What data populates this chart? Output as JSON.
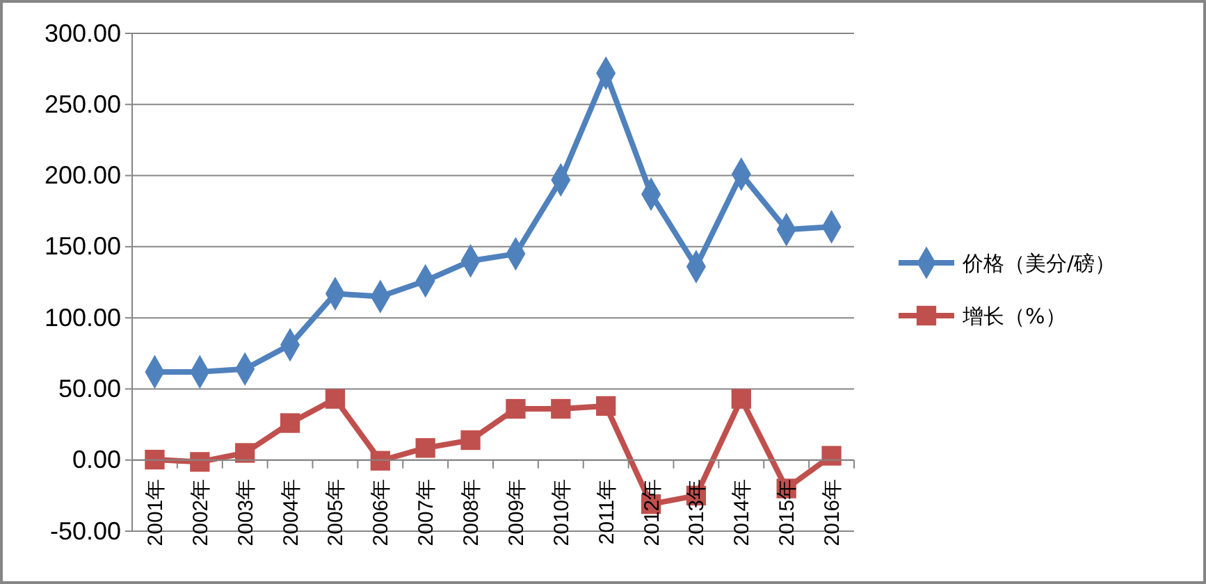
{
  "chart_data": {
    "type": "line",
    "categories": [
      "2001年",
      "2002年",
      "2003年",
      "2004年",
      "2005年",
      "2006年",
      "2007年",
      "2008年",
      "2009年",
      "2010年",
      "2011年",
      "2012年",
      "2013年",
      "2014年",
      "2015年",
      "2016年"
    ],
    "series": [
      {
        "name": "价格（美分/磅）",
        "color": "#4f81bd",
        "marker": "diamond",
        "values": [
          62,
          62,
          64,
          81,
          117,
          115,
          126,
          140,
          145,
          197,
          272,
          187,
          136,
          201,
          162,
          164
        ]
      },
      {
        "name": "增长（%）",
        "color": "#c0504d",
        "marker": "square",
        "values": [
          0.3,
          -1.3,
          5,
          26,
          43,
          -0.5,
          8.5,
          14,
          36,
          36,
          38,
          -31,
          -25,
          43,
          -20,
          3
        ]
      }
    ],
    "ylim": [
      -50,
      300
    ],
    "yticks": [
      {
        "value": -50,
        "label": "-50.00"
      },
      {
        "value": 0,
        "label": "0.00"
      },
      {
        "value": 50,
        "label": "50.00"
      },
      {
        "value": 100,
        "label": "100.00"
      },
      {
        "value": 150,
        "label": "150.00"
      },
      {
        "value": 200,
        "label": "200.00"
      },
      {
        "value": 250,
        "label": "250.00"
      },
      {
        "value": 300,
        "label": "300.00"
      }
    ],
    "grid": "y",
    "legend": "right",
    "line_style": "solid"
  }
}
